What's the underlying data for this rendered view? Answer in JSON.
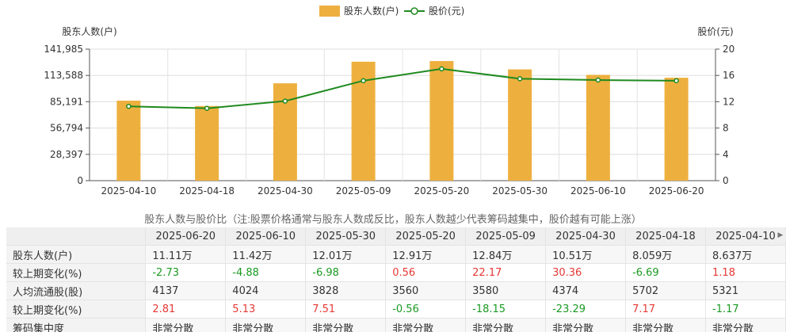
{
  "chart_data": {
    "type": "bar+line",
    "legend": [
      {
        "name": "股东人数(户)",
        "color": "#EDB03F"
      },
      {
        "name": "股价(元)",
        "color": "#1F8A1F"
      }
    ],
    "legend_position": "top-center",
    "ylabel_left": "股东人数(户)",
    "ylabel_right": "股价(元)",
    "categories": [
      "2025-04-10",
      "2025-04-18",
      "2025-04-30",
      "2025-05-09",
      "2025-05-20",
      "2025-05-30",
      "2025-06-10",
      "2025-06-20"
    ],
    "bar_values": [
      86370,
      80590,
      105100,
      128400,
      129100,
      120100,
      114200,
      111100
    ],
    "line_values": [
      11.3,
      11.0,
      12.1,
      15.2,
      17.0,
      15.5,
      15.3,
      15.2
    ],
    "left_ticks": [
      "0",
      "28,397",
      "56,794",
      "85,191",
      "113,588",
      "141,985"
    ],
    "left_ylim": [
      0,
      141985
    ],
    "right_ticks": [
      "0",
      "4",
      "8",
      "12",
      "16",
      "20"
    ],
    "right_ylim": [
      0,
      20
    ],
    "grid": true
  },
  "caption": "股东人数与股价比（注:股票价格通常与股东人数成反比，股东人数越少代表筹码越集中，股价越有可能上涨）",
  "table": {
    "headers": [
      "2025-06-20",
      "2025-06-10",
      "2025-05-30",
      "2025-05-20",
      "2025-05-09",
      "2025-04-30",
      "2025-04-18",
      "2025-04-10"
    ],
    "rows": [
      {
        "label": "股东人数(户)",
        "cells": [
          "11.11万",
          "11.42万",
          "12.01万",
          "12.91万",
          "12.84万",
          "10.51万",
          "8.059万",
          "8.637万"
        ]
      },
      {
        "label": "较上期变化(%)",
        "cells": [
          "-2.73",
          "-4.88",
          "-6.98",
          "0.56",
          "22.17",
          "30.36",
          "-6.69",
          "1.18"
        ]
      },
      {
        "label": "人均流通股(股)",
        "cells": [
          "4137",
          "4024",
          "3828",
          "3560",
          "3580",
          "4374",
          "5702",
          "5321"
        ]
      },
      {
        "label": "较上期变化(%)",
        "cells": [
          "2.81",
          "5.13",
          "7.51",
          "-0.56",
          "-18.15",
          "-23.29",
          "7.17",
          "-1.17"
        ]
      },
      {
        "label": "筹码集中度",
        "cells": [
          "非常分散",
          "非常分散",
          "非常分散",
          "非常分散",
          "非常分散",
          "非常分散",
          "非常分散",
          "非常分散"
        ]
      }
    ]
  }
}
